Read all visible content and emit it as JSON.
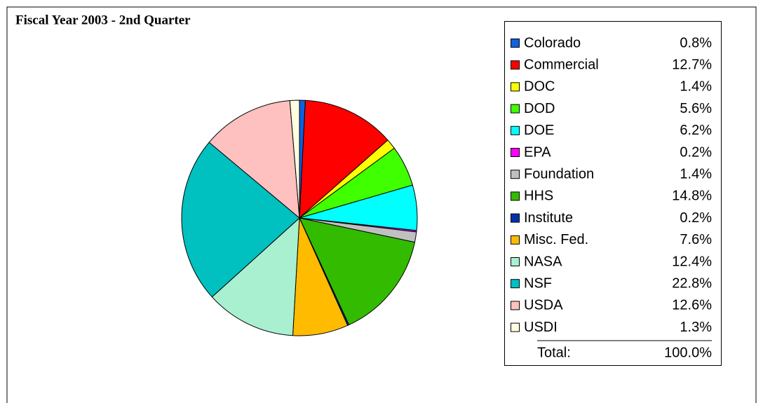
{
  "chart_data": {
    "type": "pie",
    "title": "Fiscal Year 2003 - 2nd Quarter",
    "categories": [
      "Colorado",
      "Commercial",
      "DOC",
      "DOD",
      "DOE",
      "EPA",
      "Foundation",
      "HHS",
      "Institute",
      "Misc. Fed.",
      "NASA",
      "NSF",
      "USDA",
      "USDI"
    ],
    "values": [
      0.8,
      12.7,
      1.4,
      5.6,
      6.2,
      0.2,
      1.4,
      14.8,
      0.2,
      7.6,
      12.4,
      22.8,
      12.6,
      1.3
    ],
    "value_labels": [
      "0.8%",
      "12.7%",
      "1.4%",
      "5.6%",
      "6.2%",
      "0.2%",
      "1.4%",
      "14.8%",
      "0.2%",
      "7.6%",
      "12.4%",
      "22.8%",
      "12.6%",
      "1.3%"
    ],
    "colors": [
      "#1060e0",
      "#ff0000",
      "#ffff00",
      "#40ff00",
      "#00ffff",
      "#ff00ff",
      "#c0c0c0",
      "#33bb00",
      "#0033aa",
      "#ffbb00",
      "#a8f0d0",
      "#00c0c0",
      "#ffc0c0",
      "#ffffe0"
    ],
    "total": {
      "label": "Total:",
      "value": 100,
      "value_label": "100.0%"
    }
  }
}
